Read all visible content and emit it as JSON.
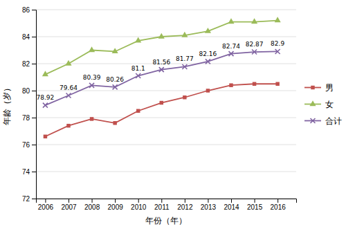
{
  "chart_data": {
    "type": "line",
    "x": [
      2006,
      2007,
      2008,
      2009,
      2010,
      2011,
      2012,
      2013,
      2014,
      2015,
      2016
    ],
    "xlim": [
      2005.6,
      2016.8
    ],
    "xticks": [
      2006,
      2007,
      2008,
      2009,
      2010,
      2011,
      2012,
      2013,
      2014,
      2015,
      2016
    ],
    "ylim": [
      72,
      86
    ],
    "yticks": [
      72,
      74,
      76,
      78,
      80,
      82,
      84,
      86
    ],
    "xlabel": "年份（年）",
    "ylabel": "年龄（岁）",
    "grid": true,
    "legend": "right",
    "series": [
      {
        "name": "男",
        "color": "#C0504D",
        "marker": "square",
        "values": [
          76.6,
          77.4,
          77.9,
          77.6,
          78.5,
          79.1,
          79.5,
          80.0,
          80.4,
          80.5,
          80.5
        ]
      },
      {
        "name": "女",
        "color": "#9BBB59",
        "marker": "triangle",
        "values": [
          81.2,
          82.0,
          83.0,
          82.9,
          83.7,
          84.0,
          84.1,
          84.4,
          85.1,
          85.1,
          85.2
        ]
      },
      {
        "name": "合计",
        "color": "#8064A2",
        "marker": "x",
        "data_labels": true,
        "values": [
          78.92,
          79.64,
          80.39,
          80.26,
          81.1,
          81.56,
          81.77,
          82.16,
          82.74,
          82.87,
          82.9
        ]
      }
    ]
  }
}
